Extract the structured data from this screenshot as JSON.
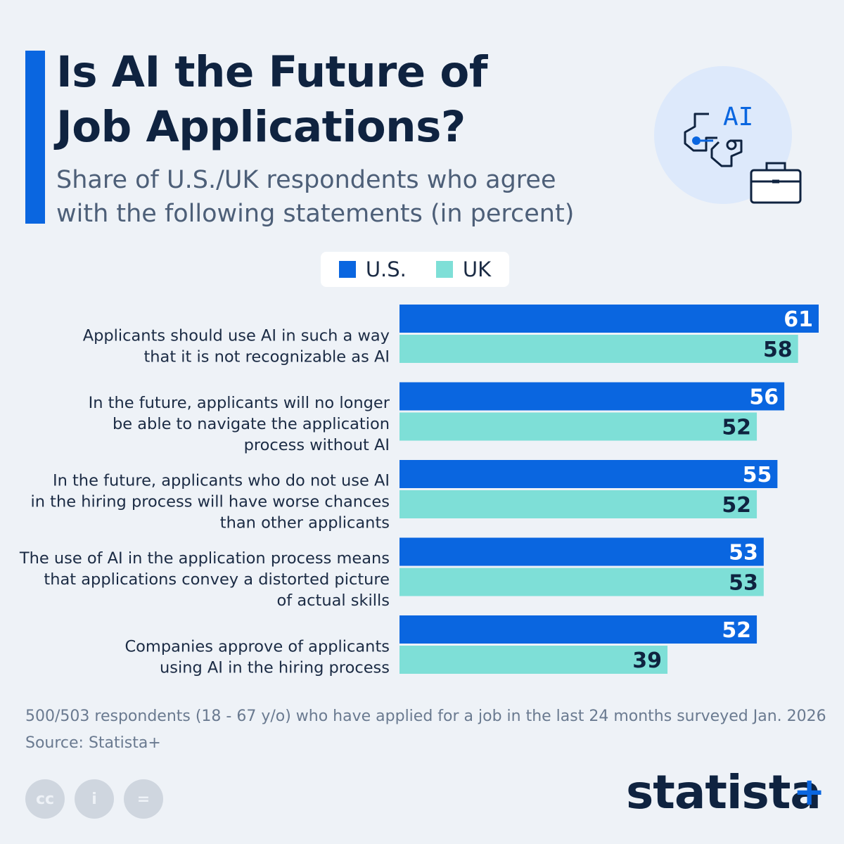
{
  "header": {
    "title_line1": "Is AI the Future of",
    "title_line2": "Job Applications?",
    "subtitle_line1": "Share of U.S./UK respondents who agree",
    "subtitle_line2": "with the following statements (in percent)",
    "icon_text": "AI"
  },
  "colors": {
    "accent": "#0a66e0",
    "us": "#0a66e0",
    "uk": "#7edfd7",
    "title": "#0f2340",
    "label": "#1b2b44"
  },
  "chart_data": {
    "type": "bar",
    "orientation": "horizontal",
    "title": "Is AI the Future of Job Applications?",
    "subtitle": "Share of U.S./UK respondents who agree with the following statements (in percent)",
    "legend_position": "top",
    "categories": [
      [
        "Applicants should use AI in such a way",
        "that it is not recognizable as AI"
      ],
      [
        "In the future, applicants will no longer",
        "be able to navigate the application",
        "process without AI"
      ],
      [
        "In the future, applicants who do not use AI",
        "in the hiring process will have worse chances",
        "than other applicants"
      ],
      [
        "The use of AI in the application process means",
        "that applications convey a distorted picture",
        "of actual skills"
      ],
      [
        "Companies approve of applicants",
        "using AI in the hiring process"
      ]
    ],
    "series": [
      {
        "name": "U.S.",
        "values": [
          61,
          56,
          55,
          53,
          52
        ]
      },
      {
        "name": "UK",
        "values": [
          58,
          52,
          52,
          53,
          39
        ]
      }
    ],
    "xlim": [
      0,
      61
    ],
    "grid": false
  },
  "footer": {
    "note": "500/503 respondents (18 - 67 y/o) who have applied for a job in the last 24 months surveyed Jan. 2026",
    "source": "Source: Statista+",
    "cc_labels": [
      "cc",
      "i",
      "="
    ],
    "brand": "statista",
    "brand_plus": "+"
  }
}
